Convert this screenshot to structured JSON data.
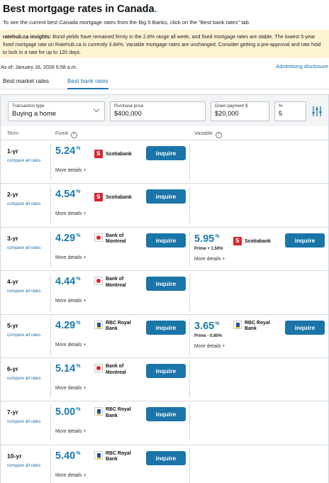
{
  "header": {
    "title": "Best mortgage rates in Canada",
    "title_dot": ".",
    "intro": "To see the current best Canada mortgage rates from the Big 5 Banks, click on the \"Best bank rates\" tab."
  },
  "insights": {
    "label": "ratehub.ca insights:",
    "text": " Bond yields have remained firmly in the 2.8% range all week, and fixed mortgage rates are stable. The lowest 5-year fixed mortgage rate on Ratehub.ca is currently 3.84%. Variable mortgage rates are unchanged. Consider getting a pre-approval and rate hold to lock in a rate for up to 120 days."
  },
  "as_of": "As of: January 16, 2026 6:58 a.m.",
  "advertising_link": "Advertising disclosure",
  "tabs": [
    {
      "label": "Best market rates",
      "active": false
    },
    {
      "label": "Best bank rates",
      "active": true
    }
  ],
  "filters": {
    "transaction_type": {
      "label": "Transaction type",
      "value": "Buying a home"
    },
    "purchase_price": {
      "label": "Purchase price",
      "value": "$400,000"
    },
    "down_payment": {
      "label": "Down payment $",
      "value": "$20,000"
    },
    "percent": {
      "label": "%",
      "value": "5"
    }
  },
  "columns": {
    "term": "Term",
    "fixed": "Fixed",
    "variable": "Variable",
    "info_glyph": "?"
  },
  "row_labels": {
    "compare": "compare all rates",
    "more": "More details +",
    "inquire": "inquire",
    "percent_sign": "%"
  },
  "rows": [
    {
      "term": "1-yr",
      "fixed": {
        "rate": "5.24",
        "lender": [
          "Scotiabank"
        ],
        "logo": "scotiabank-logo"
      }
    },
    {
      "term": "2-yr",
      "fixed": {
        "rate": "4.54",
        "lender": [
          "Scotiabank"
        ],
        "logo": "scotiabank-logo"
      }
    },
    {
      "term": "3-yr",
      "fixed": {
        "rate": "4.29",
        "lender": [
          "Bank of",
          "Montreal"
        ],
        "logo": "bmo-logo"
      },
      "variable": {
        "rate": "5.95",
        "prime": "Prime + 1.50%",
        "lender": [
          "Scotiabank"
        ],
        "logo": "scotiabank-logo"
      }
    },
    {
      "term": "4-yr",
      "fixed": {
        "rate": "4.44",
        "lender": [
          "Bank of",
          "Montreal"
        ],
        "logo": "bmo-logo"
      }
    },
    {
      "term": "5-yr",
      "fixed": {
        "rate": "4.29",
        "lender": [
          "RBC Royal",
          "Bank"
        ],
        "logo": "rbc-logo"
      },
      "variable": {
        "rate": "3.65",
        "prime": "Prime - 0.80%",
        "lender": [
          "RBC Royal",
          "Bank"
        ],
        "logo": "rbc-logo"
      }
    },
    {
      "term": "6-yr",
      "fixed": {
        "rate": "5.14",
        "lender": [
          "Bank of",
          "Montreal"
        ],
        "logo": "bmo-logo"
      }
    },
    {
      "term": "7-yr",
      "fixed": {
        "rate": "5.00",
        "lender": [
          "RBC Royal",
          "Bank"
        ],
        "logo": "rbc-logo"
      }
    },
    {
      "term": "10-yr",
      "fixed": {
        "rate": "5.40",
        "lender": [
          "RBC Royal",
          "Bank"
        ],
        "logo": "rbc-logo"
      }
    }
  ],
  "colors": {
    "accent": "#1b76a8",
    "brand_dot": "#2bb0a5",
    "insights_bg": "#fdf3d3"
  }
}
